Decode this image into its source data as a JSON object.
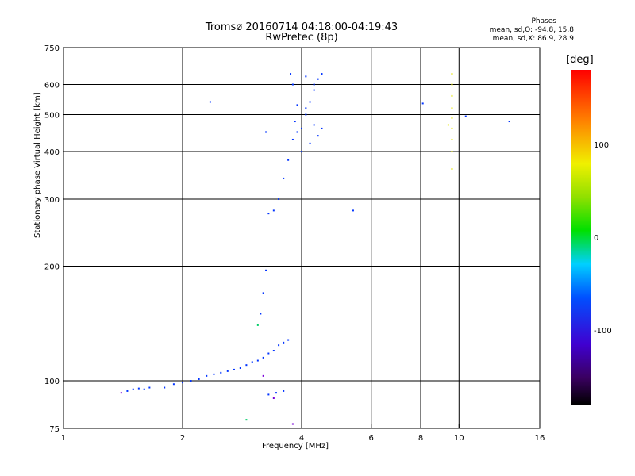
{
  "title": [
    "Tromsø 20160714 04:18:00-04:19:43",
    "RwPretec (8p)"
  ],
  "stats": {
    "title": "Phases",
    "line_o": "mean, sd,O: -94.8, 15.8",
    "line_x": "mean, sd,X: 86.9, 28.9"
  },
  "chart_data": {
    "type": "scatter",
    "xlabel": "Frequency [MHz]",
    "ylabel": "Stationary phase Virtual Height [km]",
    "x_scale": "log",
    "y_scale": "log",
    "xlim": [
      1,
      16
    ],
    "ylim": [
      75,
      750
    ],
    "x_ticks": [
      1,
      2,
      4,
      6,
      8,
      10,
      16
    ],
    "y_ticks": [
      75,
      100,
      200,
      300,
      400,
      500,
      600,
      750
    ],
    "grid_x": [
      2,
      4,
      6,
      8,
      10
    ],
    "grid_y": [
      100,
      200,
      300,
      400,
      500,
      600
    ],
    "colorbar": {
      "label": "[deg]",
      "range": [
        -180,
        180
      ],
      "ticks": [
        100,
        0,
        -100
      ]
    },
    "series": [
      {
        "color": "#0033ff",
        "points": [
          [
            1.45,
            94
          ],
          [
            1.5,
            95
          ],
          [
            1.55,
            95.5
          ],
          [
            1.6,
            95
          ],
          [
            1.65,
            96
          ],
          [
            1.8,
            96
          ],
          [
            1.9,
            98
          ],
          [
            2.0,
            99
          ],
          [
            2.1,
            100
          ],
          [
            2.2,
            101
          ],
          [
            2.3,
            103
          ],
          [
            2.4,
            104
          ],
          [
            2.5,
            105
          ],
          [
            2.6,
            106
          ],
          [
            2.7,
            107
          ],
          [
            2.8,
            108
          ],
          [
            2.9,
            110
          ],
          [
            3.0,
            112
          ],
          [
            3.1,
            113
          ],
          [
            3.2,
            115
          ],
          [
            3.3,
            118
          ],
          [
            3.4,
            120
          ],
          [
            3.5,
            124
          ],
          [
            3.6,
            126
          ],
          [
            3.7,
            128
          ],
          [
            3.15,
            150
          ],
          [
            3.2,
            170
          ],
          [
            3.25,
            195
          ],
          [
            3.3,
            92
          ],
          [
            3.45,
            93
          ],
          [
            3.6,
            94
          ],
          [
            3.3,
            275
          ],
          [
            3.4,
            280
          ],
          [
            3.5,
            300
          ],
          [
            3.6,
            340
          ],
          [
            3.7,
            380
          ],
          [
            3.8,
            430
          ],
          [
            3.85,
            480
          ],
          [
            3.9,
            530
          ],
          [
            3.8,
            600
          ],
          [
            3.75,
            640
          ],
          [
            4.0,
            460
          ],
          [
            4.1,
            500
          ],
          [
            4.2,
            540
          ],
          [
            4.3,
            580
          ],
          [
            4.4,
            620
          ],
          [
            4.5,
            640
          ],
          [
            4.0,
            400
          ],
          [
            4.2,
            420
          ],
          [
            4.4,
            440
          ],
          [
            4.5,
            460
          ],
          [
            3.9,
            450
          ],
          [
            4.3,
            470
          ],
          [
            4.1,
            520
          ],
          [
            4.3,
            600
          ],
          [
            4.1,
            630
          ],
          [
            2.35,
            540
          ],
          [
            3.25,
            450
          ],
          [
            5.4,
            280
          ],
          [
            8.1,
            535
          ],
          [
            10.4,
            495
          ],
          [
            13.4,
            480
          ]
        ]
      },
      {
        "color": "#e8e820",
        "points": [
          [
            9.6,
            400
          ],
          [
            9.6,
            430
          ],
          [
            9.6,
            460
          ],
          [
            9.6,
            490
          ],
          [
            9.6,
            520
          ],
          [
            9.6,
            560
          ],
          [
            9.6,
            600
          ],
          [
            9.6,
            640
          ],
          [
            9.6,
            360
          ],
          [
            9.4,
            470
          ]
        ]
      },
      {
        "color": "#7a00d9",
        "points": [
          [
            1.4,
            93
          ],
          [
            3.4,
            90
          ],
          [
            3.8,
            77
          ],
          [
            3.2,
            103
          ]
        ]
      },
      {
        "color": "#00cc66",
        "points": [
          [
            3.1,
            140
          ],
          [
            2.9,
            79
          ]
        ]
      }
    ]
  }
}
